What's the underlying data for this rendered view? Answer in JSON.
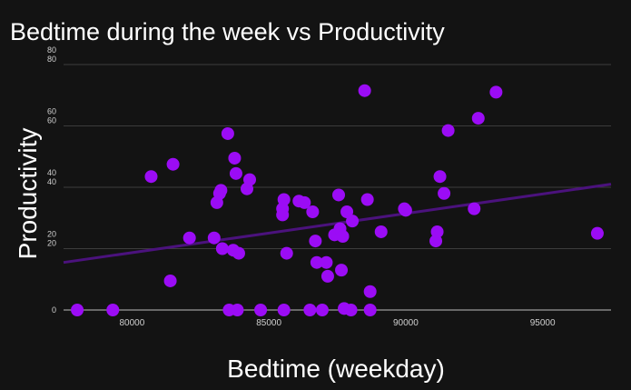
{
  "chart_data": {
    "type": "scatter",
    "title": "Bedtime during the week vs Productivity",
    "xlabel": "Bedtime (weekday)",
    "ylabel": "Productivity",
    "xlim": [
      77500,
      97500
    ],
    "ylim": [
      0,
      80
    ],
    "x_ticks": [
      "80000",
      "85000",
      "90000",
      "95000"
    ],
    "y_ticks": [
      "0",
      "20\n20",
      "40\n40",
      "60\n60",
      "80\n80"
    ],
    "grid": true,
    "legend": "none",
    "colors": {
      "point": "#9b0cf5",
      "trendline": "#4b127d",
      "grid": "#3c3c3c",
      "background": "#131313"
    },
    "trendline": {
      "x": [
        77500,
        97500
      ],
      "y": [
        15.5,
        41
      ]
    },
    "points": [
      {
        "x": 78000,
        "y": 0
      },
      {
        "x": 79300,
        "y": 0
      },
      {
        "x": 80700,
        "y": 43.5
      },
      {
        "x": 81400,
        "y": 9.5
      },
      {
        "x": 81500,
        "y": 47.5
      },
      {
        "x": 82100,
        "y": 23.5
      },
      {
        "x": 83000,
        "y": 23.5
      },
      {
        "x": 83100,
        "y": 35
      },
      {
        "x": 83200,
        "y": 38
      },
      {
        "x": 83250,
        "y": 39
      },
      {
        "x": 83300,
        "y": 20
      },
      {
        "x": 83500,
        "y": 57.5
      },
      {
        "x": 83550,
        "y": 0
      },
      {
        "x": 83700,
        "y": 19.5
      },
      {
        "x": 83750,
        "y": 49.5
      },
      {
        "x": 83800,
        "y": 44.5
      },
      {
        "x": 83850,
        "y": 0
      },
      {
        "x": 83900,
        "y": 18.5
      },
      {
        "x": 84200,
        "y": 39.5
      },
      {
        "x": 84300,
        "y": 42.5
      },
      {
        "x": 84700,
        "y": 0
      },
      {
        "x": 85500,
        "y": 33
      },
      {
        "x": 85500,
        "y": 31
      },
      {
        "x": 85550,
        "y": 36
      },
      {
        "x": 85550,
        "y": 0
      },
      {
        "x": 85650,
        "y": 18.5
      },
      {
        "x": 86100,
        "y": 35.5
      },
      {
        "x": 86300,
        "y": 35
      },
      {
        "x": 86500,
        "y": 0
      },
      {
        "x": 86600,
        "y": 32
      },
      {
        "x": 86700,
        "y": 22.5
      },
      {
        "x": 86750,
        "y": 15.5
      },
      {
        "x": 86950,
        "y": 0
      },
      {
        "x": 87100,
        "y": 15.5
      },
      {
        "x": 87150,
        "y": 11
      },
      {
        "x": 87400,
        "y": 24.5
      },
      {
        "x": 87550,
        "y": 37.5
      },
      {
        "x": 87600,
        "y": 26.5
      },
      {
        "x": 87650,
        "y": 13
      },
      {
        "x": 87700,
        "y": 24
      },
      {
        "x": 87750,
        "y": 0.5
      },
      {
        "x": 87850,
        "y": 32
      },
      {
        "x": 88000,
        "y": 0
      },
      {
        "x": 88050,
        "y": 29
      },
      {
        "x": 88500,
        "y": 71.5
      },
      {
        "x": 88600,
        "y": 36
      },
      {
        "x": 88700,
        "y": 6
      },
      {
        "x": 88700,
        "y": 0
      },
      {
        "x": 89100,
        "y": 25.5
      },
      {
        "x": 89950,
        "y": 33
      },
      {
        "x": 90000,
        "y": 32.5
      },
      {
        "x": 91100,
        "y": 22.5
      },
      {
        "x": 91150,
        "y": 25.5
      },
      {
        "x": 91250,
        "y": 43.5
      },
      {
        "x": 91400,
        "y": 38
      },
      {
        "x": 91550,
        "y": 58.5
      },
      {
        "x": 92500,
        "y": 33
      },
      {
        "x": 92650,
        "y": 62.5
      },
      {
        "x": 93300,
        "y": 71
      },
      {
        "x": 97000,
        "y": 25
      }
    ]
  }
}
